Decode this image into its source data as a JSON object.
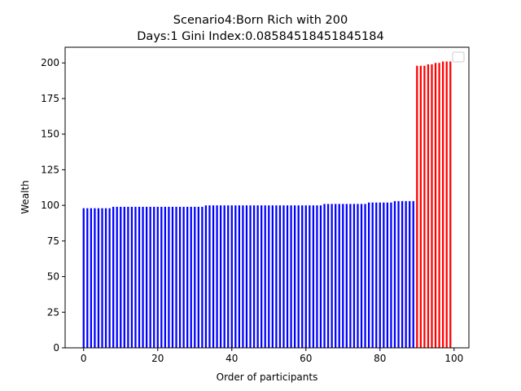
{
  "chart_data": {
    "type": "bar",
    "title": [
      "Scenario4:Born Rich with 200",
      "Days:1  Gini Index:0.08584518451845184"
    ],
    "xlabel": "Order of participants",
    "ylabel": "Wealth",
    "xlim": [
      -5,
      104
    ],
    "ylim": [
      0,
      211
    ],
    "xticks": [
      "0",
      "20",
      "40",
      "60",
      "80",
      "100"
    ],
    "yticks": [
      "0",
      "25",
      "50",
      "75",
      "100",
      "125",
      "150",
      "175",
      "200"
    ],
    "grid": false,
    "legend": "upper-right (empty)",
    "series": [
      {
        "color": "#0000ff",
        "x": [
          0,
          1,
          2,
          3,
          4,
          5,
          6,
          7,
          8,
          9,
          10,
          11,
          12,
          13,
          14,
          15,
          16,
          17,
          18,
          19,
          20,
          21,
          22,
          23,
          24,
          25,
          26,
          27,
          28,
          29,
          30,
          31,
          32,
          33,
          34,
          35,
          36,
          37,
          38,
          39,
          40,
          41,
          42,
          43,
          44,
          45,
          46,
          47,
          48,
          49,
          50,
          51,
          52,
          53,
          54,
          55,
          56,
          57,
          58,
          59,
          60,
          61,
          62,
          63,
          64,
          65,
          66,
          67,
          68,
          69,
          70,
          71,
          72,
          73,
          74,
          75,
          76,
          77,
          78,
          79,
          80,
          81,
          82,
          83,
          84,
          85,
          86,
          87,
          88,
          89
        ],
        "values": [
          98,
          98,
          98,
          98,
          98,
          98,
          98,
          98,
          99,
          99,
          99,
          99,
          99,
          99,
          99,
          99,
          99,
          99,
          99,
          99,
          99,
          99,
          99,
          99,
          99,
          99,
          99,
          99,
          99,
          99,
          99,
          99,
          99,
          100,
          100,
          100,
          100,
          100,
          100,
          100,
          100,
          100,
          100,
          100,
          100,
          100,
          100,
          100,
          100,
          100,
          100,
          100,
          100,
          100,
          100,
          100,
          100,
          100,
          100,
          100,
          100,
          100,
          100,
          100,
          100,
          101,
          101,
          101,
          101,
          101,
          101,
          101,
          101,
          101,
          101,
          101,
          101,
          102,
          102,
          102,
          102,
          102,
          102,
          102,
          103,
          103,
          103,
          103,
          103,
          103
        ]
      },
      {
        "color": "#ff0000",
        "x": [
          90,
          91,
          92,
          93,
          94,
          95,
          96,
          97,
          98,
          99
        ],
        "values": [
          198,
          198,
          198,
          199,
          199,
          200,
          200,
          201,
          201,
          201
        ]
      }
    ]
  }
}
